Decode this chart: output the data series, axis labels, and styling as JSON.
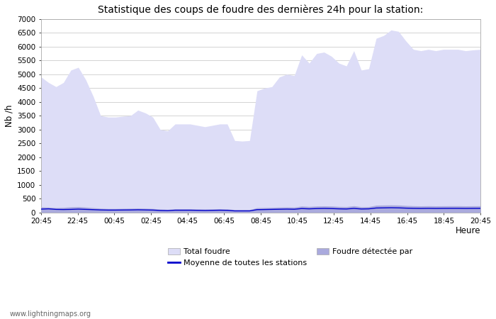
{
  "title": "Statistique des coups de foudre des dernières 24h pour la station:",
  "xlabel": "Heure",
  "ylabel": "Nb /h",
  "xlim": [
    0,
    48
  ],
  "ylim": [
    0,
    7000
  ],
  "yticks": [
    0,
    500,
    1000,
    1500,
    2000,
    2500,
    3000,
    3500,
    4000,
    4500,
    5000,
    5500,
    6000,
    6500,
    7000
  ],
  "xtick_labels": [
    "20:45",
    "22:45",
    "00:45",
    "02:45",
    "04:45",
    "06:45",
    "08:45",
    "10:45",
    "12:45",
    "14:45",
    "16:45",
    "18:45",
    "20:45"
  ],
  "xtick_positions": [
    0,
    4,
    8,
    12,
    16,
    20,
    24,
    28,
    32,
    36,
    40,
    44,
    48
  ],
  "fill_color_light": "#ddddf7",
  "fill_color_dark": "#aaaadd",
  "line_color": "#0000cc",
  "bg_color": "#ffffff",
  "grid_color": "#cccccc",
  "watermark": "www.lightningmaps.org",
  "legend_row1_left_label": "Total foudre",
  "legend_row1_left_color": "#ddddf7",
  "legend_row1_right_label": "Moyenne de toutes les stations",
  "legend_row2_left_label": "Foudre détectée par",
  "legend_row2_left_color": "#aaaadd",
  "total_foudre": [
    4900,
    4700,
    4550,
    4700,
    5150,
    5250,
    4800,
    4200,
    3500,
    3450,
    3450,
    3480,
    3500,
    3700,
    3600,
    3450,
    3000,
    2950,
    3200,
    3200,
    3200,
    3150,
    3100,
    3150,
    3200,
    3200,
    2600,
    2580,
    2600,
    4400,
    4500,
    4550,
    4900,
    5000,
    4950,
    5700,
    5400,
    5750,
    5800,
    5650,
    5400,
    5300,
    5850,
    5150,
    5200,
    6300,
    6400,
    6600,
    6550,
    6200,
    5900,
    5850,
    5900,
    5850,
    5900,
    5900,
    5900,
    5850,
    5880,
    5900
  ],
  "foudre_detectee": [
    200,
    190,
    170,
    180,
    200,
    210,
    190,
    170,
    150,
    140,
    140,
    145,
    150,
    155,
    150,
    140,
    120,
    110,
    130,
    130,
    130,
    125,
    120,
    125,
    130,
    125,
    100,
    100,
    100,
    170,
    175,
    180,
    190,
    195,
    190,
    230,
    215,
    230,
    235,
    230,
    215,
    210,
    240,
    205,
    210,
    260,
    265,
    270,
    265,
    250,
    240,
    235,
    240,
    235,
    238,
    240,
    240,
    235,
    238,
    240
  ],
  "moyenne": [
    120,
    130,
    110,
    105,
    110,
    120,
    110,
    100,
    90,
    85,
    85,
    88,
    90,
    95,
    90,
    85,
    70,
    65,
    80,
    80,
    80,
    75,
    70,
    75,
    80,
    75,
    55,
    55,
    55,
    100,
    105,
    110,
    115,
    120,
    115,
    140,
    130,
    140,
    145,
    140,
    130,
    125,
    145,
    125,
    130,
    160,
    165,
    170,
    165,
    155,
    148,
    145,
    148,
    145,
    147,
    148,
    148,
    145,
    147,
    148
  ]
}
